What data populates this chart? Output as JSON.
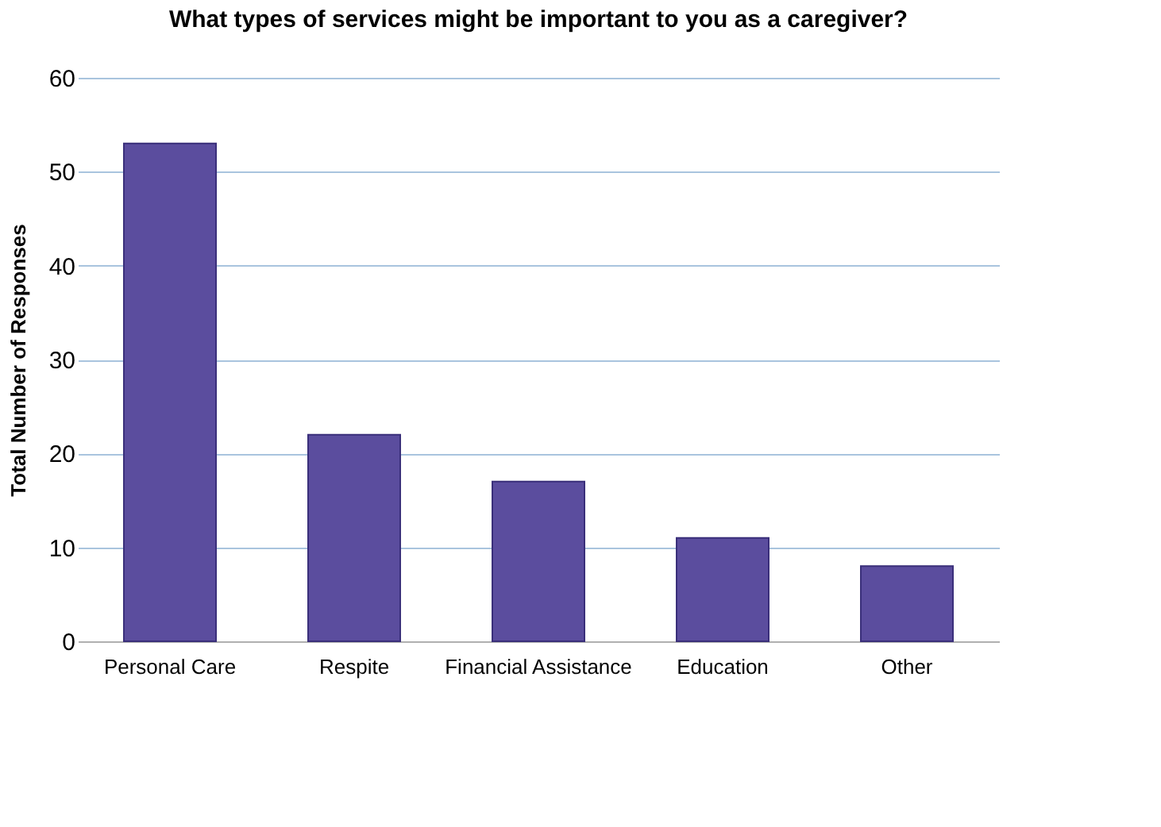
{
  "chart_data": {
    "type": "bar",
    "title": "What types of services might be important to you as a caregiver?",
    "ylabel": "Total Number of Responses",
    "categories": [
      "Personal Care",
      "Respite",
      "Financial Assistance",
      "Education",
      "Other"
    ],
    "values": [
      53,
      22,
      17,
      11,
      8
    ],
    "color": "#5b4d9e",
    "ylim": [
      0,
      60
    ],
    "yticks": [
      0,
      10,
      20,
      30,
      40,
      50,
      60
    ],
    "grid": "y"
  }
}
